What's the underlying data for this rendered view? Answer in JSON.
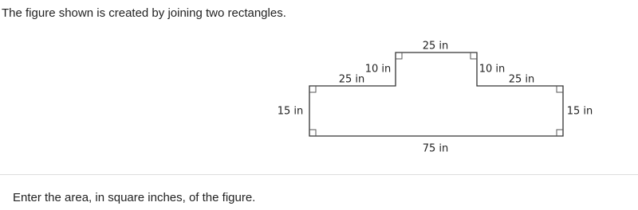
{
  "intro": "The figure shown is created by joining two rectangles.",
  "figure": {
    "labels": [
      "25 in",
      "10 in",
      "10 in",
      "25 in",
      "25 in",
      "15 in",
      "15 in",
      "75 in"
    ]
  },
  "question": "Enter the area, in square inches, of the figure."
}
